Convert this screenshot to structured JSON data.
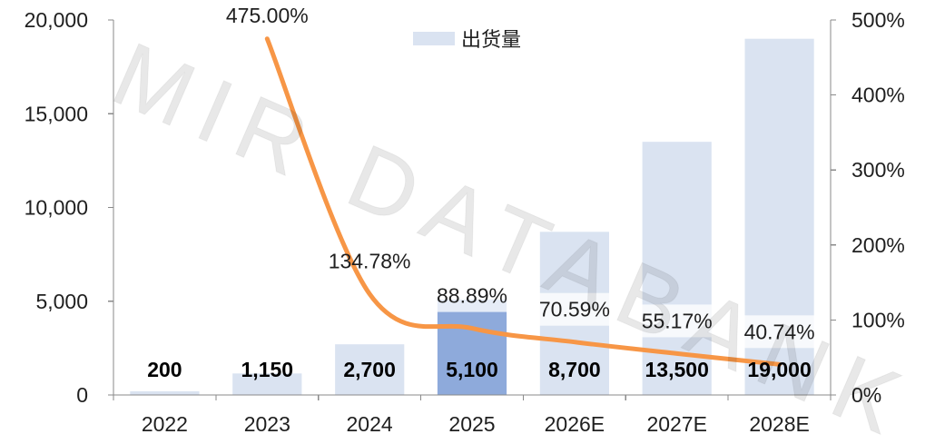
{
  "chart_data": {
    "type": "bar",
    "categories": [
      "2022",
      "2023",
      "2024",
      "2025",
      "2026E",
      "2027E",
      "2028E"
    ],
    "series": [
      {
        "name": "出货量",
        "type": "bar",
        "axis": "left",
        "values": [
          200,
          1150,
          2700,
          5100,
          8700,
          13500,
          19000
        ],
        "labels": [
          "200",
          "1,150",
          "2,700",
          "5,100",
          "8,700",
          "13,500",
          "19,000"
        ],
        "color": "#dae3f1",
        "colors": [
          "#dae3f1",
          "#dae3f1",
          "#dae3f1",
          "#8eaadb",
          "#dae3f1",
          "#dae3f1",
          "#dae3f1"
        ]
      },
      {
        "type": "line",
        "axis": "right",
        "smooth": true,
        "values": [
          null,
          475.0,
          134.78,
          88.89,
          70.59,
          55.17,
          40.74
        ],
        "labels": [
          null,
          "475.00%",
          "134.78%",
          "88.89%",
          "70.59%",
          "55.17%",
          "40.74%"
        ],
        "color": "#f79646"
      }
    ],
    "y_left": {
      "min": 0,
      "max": 20000,
      "ticks": [
        {
          "value": 0,
          "label": "0"
        },
        {
          "value": 5000,
          "label": "5,000"
        },
        {
          "value": 10000,
          "label": "10,000"
        },
        {
          "value": 15000,
          "label": "15,000"
        },
        {
          "value": 20000,
          "label": "20,000"
        }
      ]
    },
    "y_right": {
      "min": 0,
      "max": 500,
      "ticks": [
        {
          "value": 0,
          "label": "0%"
        },
        {
          "value": 100,
          "label": "100%"
        },
        {
          "value": 200,
          "label": "200%"
        },
        {
          "value": 300,
          "label": "300%"
        },
        {
          "value": 400,
          "label": "400%"
        },
        {
          "value": 500,
          "label": "500%"
        }
      ]
    },
    "legend": {
      "position": "top-center"
    },
    "grid": false
  },
  "watermark": "MIR DATABANK"
}
